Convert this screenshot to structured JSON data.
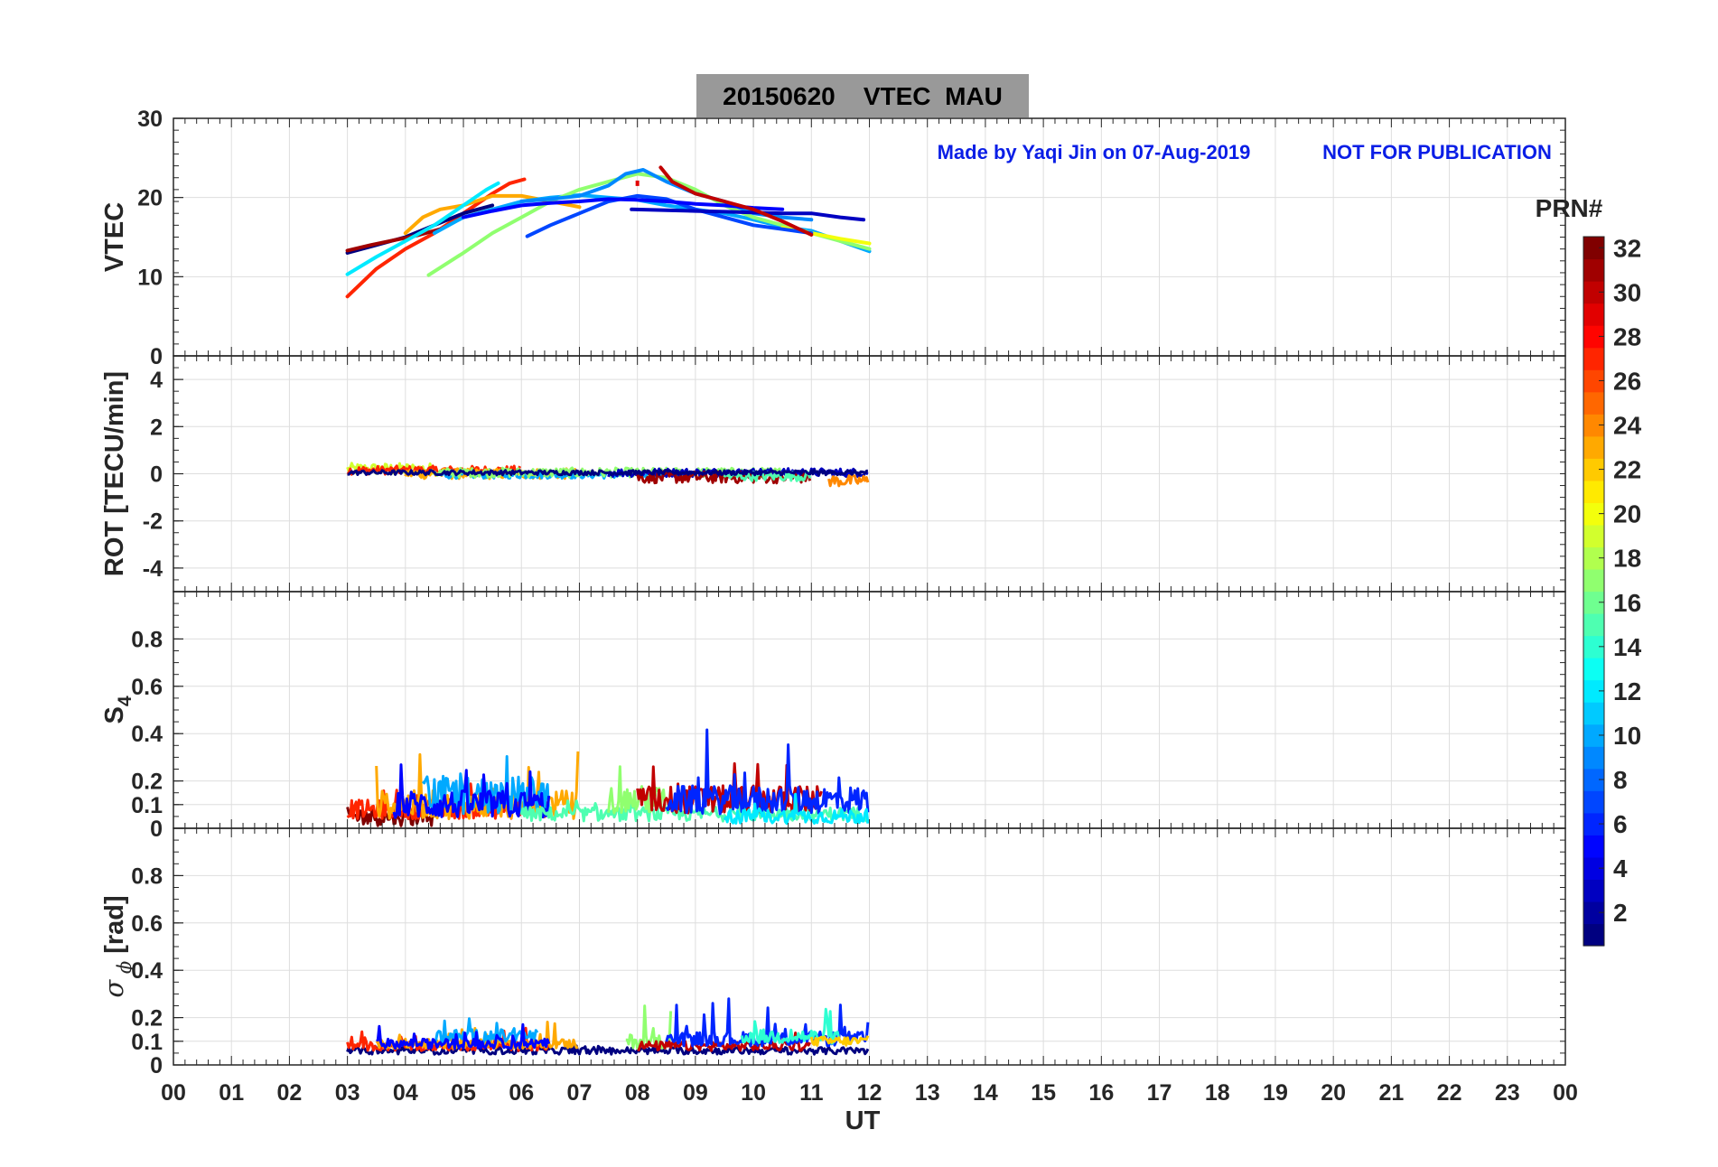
{
  "figure": {
    "title": "20150620    VTEC  MAU",
    "note_left": "Made by Yaqi Jin on 07-Aug-2019",
    "note_right": "NOT FOR PUBLICATION",
    "note_color": "#0a1ee6",
    "title_bg": "#999999",
    "xlabel": "UT",
    "colorbar_label": "PRN#"
  },
  "chart_data": [
    {
      "type": "line",
      "name": "VTEC",
      "ylabel": "VTEC",
      "xlim": [
        0,
        24
      ],
      "ylim": [
        0,
        30
      ],
      "yticks": [
        0,
        10,
        20,
        30
      ],
      "ytick_labels": [
        "0",
        "10",
        "20",
        "30"
      ],
      "xticks": [
        0,
        1,
        2,
        3,
        4,
        5,
        6,
        7,
        8,
        9,
        10,
        11,
        12,
        13,
        14,
        15,
        16,
        17,
        18,
        19,
        20,
        21,
        22,
        23,
        24
      ],
      "grid": true,
      "series": [
        {
          "prn": 27,
          "x": [
            3.0,
            3.5,
            4.0,
            4.5,
            5.0,
            5.5,
            5.8,
            6.05
          ],
          "y": [
            7.5,
            11,
            13.5,
            15.5,
            18,
            20.5,
            21.8,
            22.3
          ]
        },
        {
          "prn": 1,
          "x": [
            3.0,
            3.5,
            4.0,
            4.5,
            5.0,
            5.5
          ],
          "y": [
            13,
            14,
            15,
            16.5,
            18,
            19
          ]
        },
        {
          "prn": 31,
          "x": [
            3.0,
            3.4,
            3.8,
            4.2,
            4.6
          ],
          "y": [
            13.3,
            14,
            14.6,
            15.2,
            16
          ]
        },
        {
          "prn": 23,
          "x": [
            4.0,
            4.3,
            4.6,
            5.0,
            5.5,
            6.0,
            6.5,
            7.0
          ],
          "y": [
            15.5,
            17.5,
            18.5,
            19,
            20.2,
            20.2,
            19.5,
            18.8
          ]
        },
        {
          "prn": 12,
          "x": [
            3.0,
            3.5,
            4.0,
            4.5,
            5.0,
            5.4,
            5.6
          ],
          "y": [
            10.3,
            12.5,
            14.5,
            16.5,
            19,
            21,
            21.8
          ]
        },
        {
          "prn": 10,
          "x": [
            4.5,
            5.0,
            5.5,
            6.0,
            6.5,
            7.0,
            7.5,
            8.0,
            8.5,
            9.0,
            9.5,
            10.0,
            10.5,
            11.0,
            11.5,
            12.0
          ],
          "y": [
            15.5,
            17.5,
            18.5,
            19.5,
            20,
            20.3,
            20,
            19.7,
            19,
            18.5,
            18,
            17.2,
            16.3,
            15.8,
            14.5,
            13.2
          ]
        },
        {
          "prn": 17,
          "x": [
            4.4,
            5.0,
            5.5,
            6.0,
            6.5,
            7.0,
            7.5,
            8.0,
            8.5,
            9.0,
            9.5,
            10.0,
            10.5,
            11.0,
            11.5,
            12.0
          ],
          "y": [
            10.2,
            13,
            15.5,
            17.5,
            19.5,
            21,
            22,
            23,
            22.5,
            21,
            19,
            17.5,
            16.5,
            15.5,
            14.5,
            13.5
          ]
        },
        {
          "prn": 20,
          "x": [
            10.5,
            11.0,
            11.5,
            12.0
          ],
          "y": [
            16.2,
            15.5,
            14.8,
            14.2
          ]
        },
        {
          "prn": 7,
          "x": [
            6.1,
            6.5,
            7.0,
            7.5,
            8.0,
            8.5,
            9.0,
            9.5,
            10.0,
            10.5,
            11.0
          ],
          "y": [
            15.1,
            16.5,
            18,
            19.5,
            20.2,
            19.8,
            18.5,
            17.5,
            16.5,
            16,
            15.5
          ]
        },
        {
          "prn": 9,
          "x": [
            6.0,
            6.5,
            7.0,
            7.5,
            7.8,
            8.1,
            8.5,
            9.0,
            9.5,
            10.0,
            10.5,
            11.0
          ],
          "y": [
            19.5,
            19.8,
            20.2,
            21.5,
            23,
            23.5,
            22,
            20.5,
            19.5,
            18,
            17.5,
            17.2
          ]
        },
        {
          "prn": 3,
          "x": [
            7.9,
            8.5,
            9.0,
            9.5,
            10.0,
            10.5,
            11.0,
            11.5,
            11.9
          ],
          "y": [
            18.5,
            18.4,
            18.3,
            18.2,
            18.1,
            18,
            18,
            17.5,
            17.2
          ]
        },
        {
          "prn": 5,
          "x": [
            5.0,
            5.5,
            6.0,
            6.5,
            7.0,
            7.5,
            8.0,
            8.5,
            9.0,
            9.5,
            10.0,
            10.5
          ],
          "y": [
            17.5,
            18.3,
            19,
            19.3,
            19.5,
            19.8,
            19.7,
            19.5,
            19.2,
            19,
            18.7,
            18.5
          ]
        },
        {
          "prn": 30,
          "x": [
            8.4,
            8.6,
            9.0,
            9.5,
            10.0,
            10.5,
            11.0
          ],
          "y": [
            23.8,
            22,
            20.5,
            19.5,
            18.5,
            17,
            15.3
          ]
        },
        {
          "prn": 29,
          "x": [
            8.0
          ],
          "y": [
            21.8
          ]
        }
      ]
    },
    {
      "type": "line",
      "name": "ROT",
      "ylabel": "ROT [TECU/min]",
      "xlim": [
        0,
        24
      ],
      "ylim": [
        -5,
        5
      ],
      "yticks": [
        -4,
        -2,
        0,
        2,
        4
      ],
      "ytick_labels": [
        "-4",
        "-2",
        "0",
        "2",
        "4"
      ],
      "grid": true,
      "noise_bands": [
        {
          "prn": 19,
          "start": 3.0,
          "end": 4.5,
          "center": 0.2,
          "amp": 0.25
        },
        {
          "prn": 27,
          "start": 3.0,
          "end": 6.0,
          "center": 0.15,
          "amp": 0.18
        },
        {
          "prn": 23,
          "start": 4.0,
          "end": 7.0,
          "center": 0.0,
          "amp": 0.22
        },
        {
          "prn": 10,
          "start": 4.5,
          "end": 8.5,
          "center": -0.05,
          "amp": 0.15
        },
        {
          "prn": 17,
          "start": 4.5,
          "end": 10.5,
          "center": 0.05,
          "amp": 0.2
        },
        {
          "prn": 3,
          "start": 7.5,
          "end": 12.0,
          "center": 0.05,
          "amp": 0.18
        },
        {
          "prn": 31,
          "start": 8.0,
          "end": 11.0,
          "center": -0.15,
          "amp": 0.25
        },
        {
          "prn": 15,
          "start": 9.5,
          "end": 11.0,
          "center": -0.1,
          "amp": 0.2
        },
        {
          "prn": 24,
          "start": 11.3,
          "end": 12.0,
          "center": -0.3,
          "amp": 0.25
        },
        {
          "prn": 1,
          "start": 3.0,
          "end": 12.0,
          "center": 0.05,
          "amp": 0.1
        }
      ]
    },
    {
      "type": "line",
      "name": "S4",
      "ylabel": "S4",
      "xlim": [
        0,
        24
      ],
      "ylim": [
        0,
        1
      ],
      "yticks": [
        0,
        0.1,
        0.2,
        0.4,
        0.6,
        0.8
      ],
      "ytick_labels": [
        "0",
        "0.1",
        "0.2",
        "0.4",
        "0.6",
        "0.8"
      ],
      "grid": true,
      "noise_bands": [
        {
          "prn": 32,
          "start": 3.0,
          "end": 4.5,
          "center": 0.05,
          "amp": 0.04,
          "spikes": 0.04
        },
        {
          "prn": 27,
          "start": 3.0,
          "end": 6.5,
          "center": 0.08,
          "amp": 0.04,
          "spikes": 0.08
        },
        {
          "prn": 23,
          "start": 3.5,
          "end": 7.0,
          "center": 0.1,
          "amp": 0.06,
          "spikes": 0.25
        },
        {
          "prn": 10,
          "start": 4.3,
          "end": 6.5,
          "center": 0.14,
          "amp": 0.08,
          "spikes": 0.2
        },
        {
          "prn": 5,
          "start": 3.8,
          "end": 6.5,
          "center": 0.1,
          "amp": 0.06,
          "spikes": 0.15
        },
        {
          "prn": 15,
          "start": 6.0,
          "end": 12.0,
          "center": 0.06,
          "amp": 0.03,
          "spikes": 0.05
        },
        {
          "prn": 17,
          "start": 7.5,
          "end": 8.5,
          "center": 0.12,
          "amp": 0.06,
          "spikes": 0.2
        },
        {
          "prn": 30,
          "start": 8.0,
          "end": 11.2,
          "center": 0.12,
          "amp": 0.06,
          "spikes": 0.26
        },
        {
          "prn": 6,
          "start": 8.5,
          "end": 12.0,
          "center": 0.12,
          "amp": 0.06,
          "spikes": 0.24
        },
        {
          "prn": 12,
          "start": 9.5,
          "end": 12.0,
          "center": 0.05,
          "amp": 0.03,
          "spikes": 0.1
        }
      ]
    },
    {
      "type": "line",
      "name": "SigmaPhi",
      "ylabel": "σ ϕ [rad]",
      "xlim": [
        0,
        24
      ],
      "ylim": [
        0,
        1
      ],
      "yticks": [
        0,
        0.1,
        0.2,
        0.4,
        0.6,
        0.8
      ],
      "ytick_labels": [
        "0",
        "0.1",
        "0.2",
        "0.4",
        "0.6",
        "0.8"
      ],
      "xtick_labels": [
        "00",
        "01",
        "02",
        "03",
        "04",
        "05",
        "06",
        "07",
        "08",
        "09",
        "10",
        "11",
        "12",
        "13",
        "14",
        "15",
        "16",
        "17",
        "18",
        "19",
        "20",
        "21",
        "22",
        "23",
        "00"
      ],
      "grid": true,
      "noise_bands": [
        {
          "prn": 1,
          "start": 3.0,
          "end": 12.0,
          "center": 0.06,
          "amp": 0.015,
          "spikes": 0.02
        },
        {
          "prn": 27,
          "start": 3.0,
          "end": 6.5,
          "center": 0.08,
          "amp": 0.02,
          "spikes": 0.06
        },
        {
          "prn": 23,
          "start": 3.5,
          "end": 7.0,
          "center": 0.09,
          "amp": 0.02,
          "spikes": 0.08
        },
        {
          "prn": 10,
          "start": 4.5,
          "end": 6.3,
          "center": 0.12,
          "amp": 0.03,
          "spikes": 0.1
        },
        {
          "prn": 5,
          "start": 3.5,
          "end": 6.5,
          "center": 0.09,
          "amp": 0.02,
          "spikes": 0.08
        },
        {
          "prn": 17,
          "start": 7.8,
          "end": 8.6,
          "center": 0.1,
          "amp": 0.03,
          "spikes": 0.18
        },
        {
          "prn": 30,
          "start": 8.0,
          "end": 11.0,
          "center": 0.08,
          "amp": 0.02,
          "spikes": 0.06
        },
        {
          "prn": 6,
          "start": 8.5,
          "end": 12.0,
          "center": 0.11,
          "amp": 0.03,
          "spikes": 0.15
        },
        {
          "prn": 14,
          "start": 9.8,
          "end": 11.5,
          "center": 0.12,
          "amp": 0.03,
          "spikes": 0.1
        },
        {
          "prn": 22,
          "start": 11.0,
          "end": 12.0,
          "center": 0.1,
          "amp": 0.02,
          "spikes": 0.03
        }
      ]
    },
    {
      "type": "heatmap",
      "name": "colorbar",
      "label": "PRN#",
      "range": [
        1,
        32
      ],
      "ticks": [
        2,
        4,
        6,
        8,
        10,
        12,
        14,
        16,
        18,
        20,
        22,
        24,
        26,
        28,
        30,
        32
      ],
      "tick_labels": [
        "2",
        "4",
        "6",
        "8",
        "10",
        "12",
        "14",
        "16",
        "18",
        "20",
        "22",
        "24",
        "26",
        "28",
        "30",
        "32"
      ],
      "colormap": "jet"
    }
  ]
}
